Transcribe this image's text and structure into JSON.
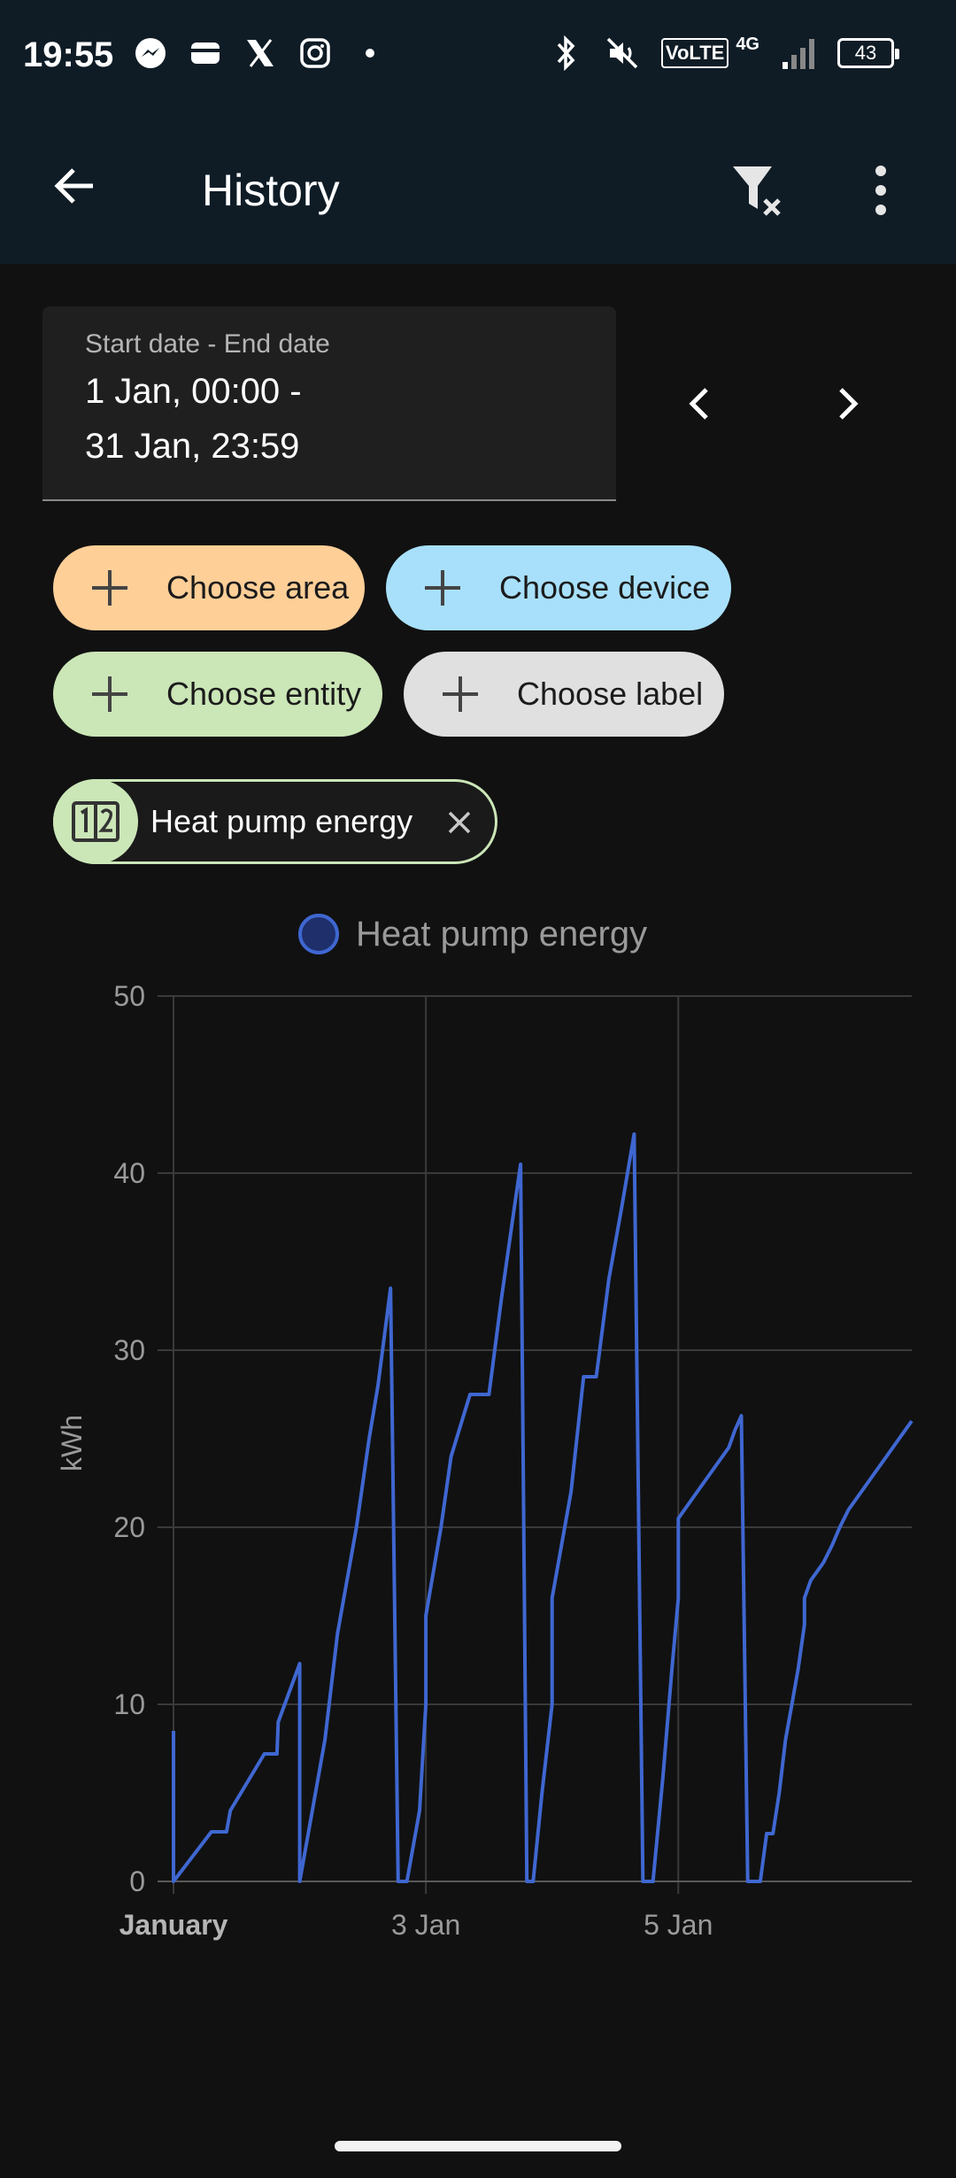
{
  "status_bar": {
    "time": "19:55",
    "left_icons": [
      "messenger-icon",
      "wallet-icon",
      "x-icon",
      "instagram-icon",
      "dot-icon"
    ],
    "right_icons": [
      "bluetooth-icon",
      "mute-icon",
      "volte-icon",
      "signal-icon"
    ],
    "volte_label": "VoLTE",
    "network_label": "4G",
    "battery": "43"
  },
  "app_bar": {
    "title": "History",
    "back_icon": "back-arrow-icon",
    "filter_clear_icon": "filter-remove-icon",
    "more_icon": "more-vert-icon"
  },
  "date_range": {
    "label": "Start date - End date",
    "start": "1 Jan, 00:00 -",
    "end": "31 Jan, 23:59"
  },
  "target_pickers": {
    "area": {
      "label": "Choose area",
      "color": "#ffcf98"
    },
    "device": {
      "label": "Choose device",
      "color": "#a8e0fb"
    },
    "entity": {
      "label": "Choose entity",
      "color": "#cbe6b7"
    },
    "label": {
      "label": "Choose label",
      "color": "#e0e0e0"
    }
  },
  "selected_entity": {
    "name": "Heat pump energy",
    "icon": "counter-icon"
  },
  "chart_data": {
    "type": "line",
    "legend": [
      "Heat pump energy"
    ],
    "legend_position": "top-center",
    "ylabel": "kWh",
    "xlabel": "",
    "ylim": [
      0,
      50
    ],
    "yticks": [
      0,
      10,
      20,
      30,
      40,
      50
    ],
    "xticks": [
      "January",
      "3 Jan",
      "5 Jan"
    ],
    "xlim_days": [
      1,
      6.85
    ],
    "grid": true,
    "color": "#3f67d1",
    "series": [
      {
        "name": "Heat pump energy",
        "x": [
          1.0,
          1.0,
          1.0,
          1.3,
          1.42,
          1.45,
          1.72,
          1.82,
          1.83,
          2.0,
          2.0,
          2.2,
          2.3,
          2.45,
          2.55,
          2.62,
          2.72,
          2.78,
          2.85,
          2.95,
          3.0,
          3.0,
          3.12,
          3.2,
          3.35,
          3.5,
          3.6,
          3.7,
          3.75,
          3.8,
          3.85,
          3.92,
          4.0,
          4.0,
          4.15,
          4.25,
          4.35,
          4.45,
          4.55,
          4.65,
          4.72,
          4.8,
          4.88,
          4.95,
          5.0,
          5.0,
          5.15,
          5.3,
          5.4,
          5.45,
          5.5,
          5.55,
          5.6,
          5.65,
          5.7,
          5.75,
          5.8,
          5.85,
          5.9,
          5.95,
          6.0,
          6.0,
          6.05,
          6.15,
          6.22,
          6.28,
          6.35,
          6.45,
          6.55,
          6.65,
          6.75,
          6.85
        ],
        "values": [
          8.5,
          0,
          0,
          2.8,
          2.8,
          4.0,
          7.2,
          7.2,
          9.0,
          12.3,
          0,
          8,
          14,
          20,
          25,
          28,
          33.5,
          0,
          0,
          4,
          10,
          15,
          20,
          24,
          27.5,
          27.5,
          33,
          38,
          40.5,
          0,
          0,
          5,
          10,
          16,
          22,
          28.5,
          28.5,
          34,
          38,
          42.2,
          0,
          0,
          6,
          12,
          16,
          20.5,
          22,
          23.5,
          24.5,
          25.5,
          26.3,
          0,
          0,
          0,
          2.7,
          2.7,
          5,
          8,
          10,
          12,
          14.5,
          16,
          17,
          18,
          19,
          20,
          21,
          22,
          23,
          24,
          25,
          26
        ]
      }
    ]
  }
}
